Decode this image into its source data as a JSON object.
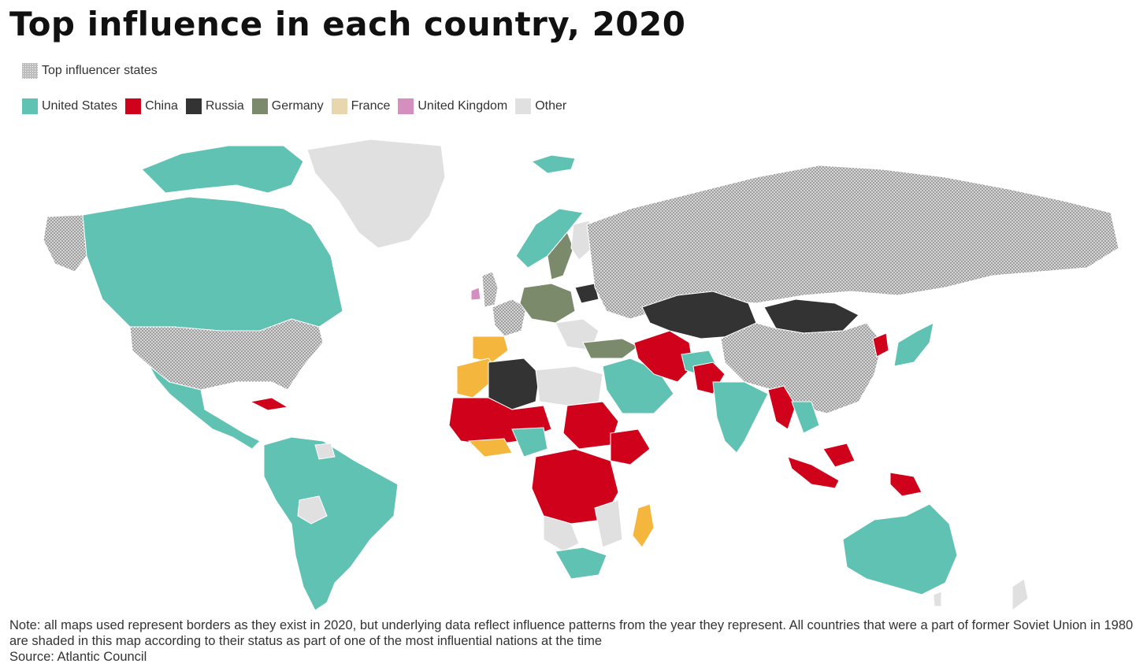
{
  "title": "Top influence in each country, 2020",
  "legend": {
    "hatch_label": "Top influencer states",
    "hatch_pattern": "dotted-gray",
    "items": [
      {
        "label": "United States",
        "color": "#5fc2b2"
      },
      {
        "label": "China",
        "color": "#d0021b"
      },
      {
        "label": "Russia",
        "color": "#333333"
      },
      {
        "label": "Germany",
        "color": "#7a8a6a"
      },
      {
        "label": "France",
        "color": "#e8d7ae"
      },
      {
        "label": "United Kingdom",
        "color": "#d48fc0"
      },
      {
        "label": "Other",
        "color": "#e0e0e0"
      }
    ]
  },
  "accent_colors": {
    "france_map_fill": "#f4b63c"
  },
  "note": "Note: all maps used represent borders as they exist in 2020, but underlying data reflect influence patterns from the year they represent. All countries that were a part of former Soviet Union in 1980 are shaded in this map according to their status as part of one of the most influential nations at the time",
  "source": "Source: Atlantic Council"
}
